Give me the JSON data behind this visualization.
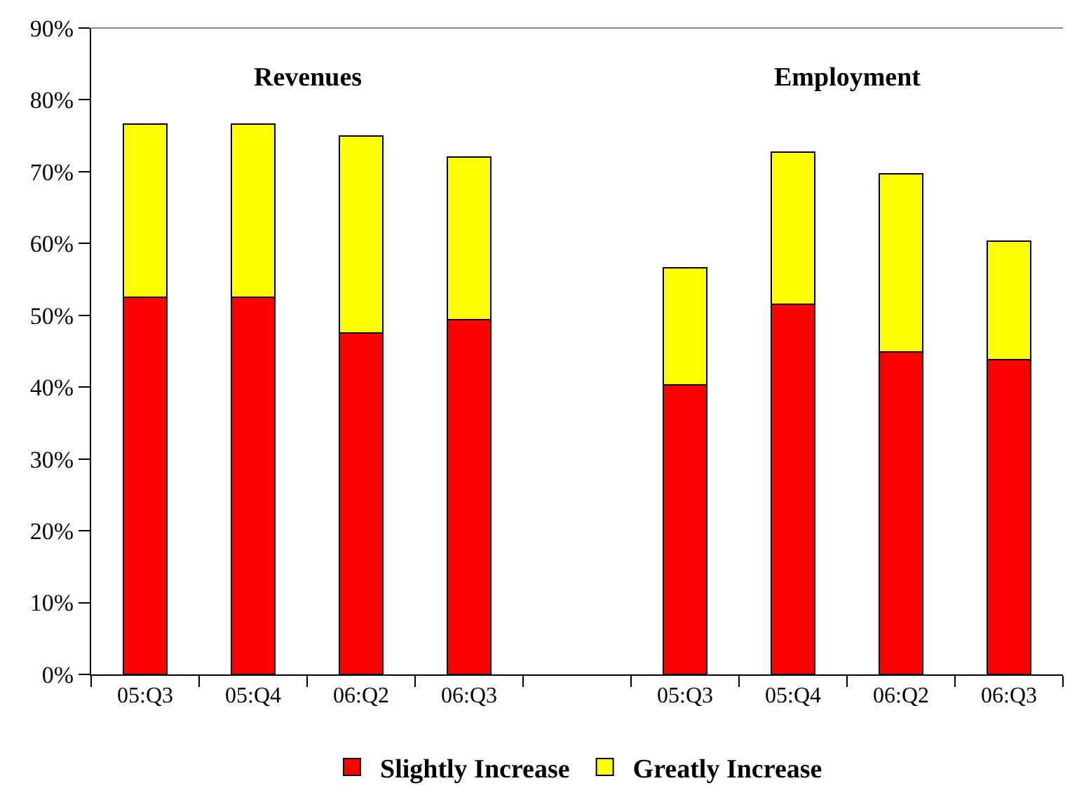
{
  "chart_data": {
    "type": "bar",
    "stacked": true,
    "categories": [
      "05:Q3",
      "05:Q4",
      "06:Q2",
      "06:Q3",
      null,
      "05:Q3",
      "05:Q4",
      "06:Q2",
      "06:Q3"
    ],
    "series": [
      {
        "name": "Slightly Increase",
        "color": "#ff0000",
        "values": [
          52.5,
          52.5,
          47.5,
          49.4,
          null,
          40.3,
          51.5,
          44.9,
          43.8
        ]
      },
      {
        "name": "Greatly Increase",
        "color": "#ffff00",
        "values": [
          24.1,
          24.1,
          27.5,
          22.6,
          null,
          16.3,
          21.2,
          24.8,
          16.5
        ]
      }
    ],
    "annotations": [
      "Revenues",
      "Employment"
    ],
    "ylim": [
      0,
      90
    ],
    "yticks": [
      {
        "value": 0,
        "label": "0%"
      },
      {
        "value": 10,
        "label": "10%"
      },
      {
        "value": 20,
        "label": "20%"
      },
      {
        "value": 30,
        "label": "30%"
      },
      {
        "value": 40,
        "label": "40%"
      },
      {
        "value": 50,
        "label": "50%"
      },
      {
        "value": 60,
        "label": "60%"
      },
      {
        "value": 70,
        "label": "70%"
      },
      {
        "value": 80,
        "label": "80%"
      },
      {
        "value": 90,
        "label": "90%"
      }
    ],
    "legend": "bottom"
  }
}
